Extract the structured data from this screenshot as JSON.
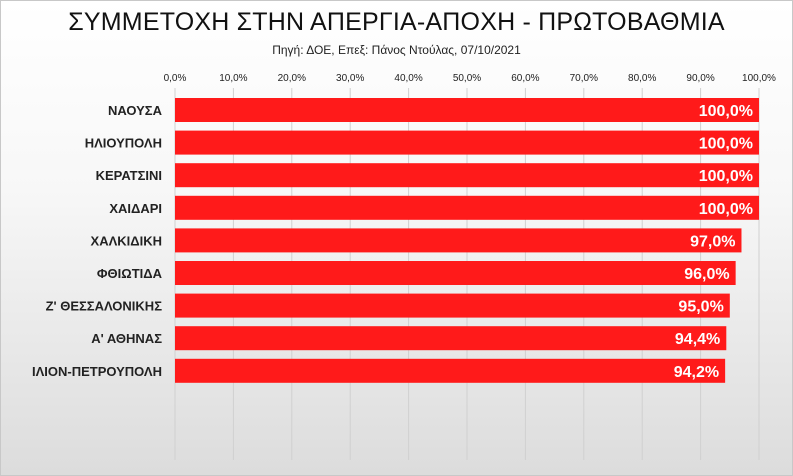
{
  "chart_data": {
    "type": "bar",
    "orientation": "horizontal",
    "title": "ΣΥΜΜΕΤΟΧΗ ΣΤΗΝ ΑΠΕΡΓΙΑ-ΑΠΟΧΗ - ΠΡΩΤΟΒΑΘΜΙΑ",
    "subtitle": "Πηγή: ΔΟΕ, Επεξ: Πάνος Ντούλας, 07/10/2021",
    "xlabel": "",
    "ylabel": "",
    "xlim": [
      0,
      100
    ],
    "x_ticks": [
      "0,0%",
      "10,0%",
      "20,0%",
      "30,0%",
      "40,0%",
      "50,0%",
      "60,0%",
      "70,0%",
      "80,0%",
      "90,0%",
      "100,0%"
    ],
    "x_axis_position": "top",
    "grid": true,
    "bar_color": "#ff1a1a",
    "categories": [
      "ΝΑΟΥΣΑ",
      "ΗΛΙΟΥΠΟΛΗ",
      "ΚΕΡΑΤΣΙΝΙ",
      "ΧΑΙΔΑΡΙ",
      "ΧΑΛΚΙΔΙΚΗ",
      "ΦΘΙΩΤΙΔΑ",
      "Ζ' ΘΕΣΣΑΛΟΝΙΚΗΣ",
      "Α' ΑΘΗΝΑΣ",
      "ΙΛΙΟΝ-ΠΕΤΡΟΥΠΟΛΗ"
    ],
    "values": [
      100.0,
      100.0,
      100.0,
      100.0,
      97.0,
      96.0,
      95.0,
      94.4,
      94.2
    ],
    "data_labels": [
      "100,0%",
      "100,0%",
      "100,0%",
      "100,0%",
      "97,0%",
      "96,0%",
      "95,0%",
      "94,4%",
      "94,2%"
    ]
  }
}
